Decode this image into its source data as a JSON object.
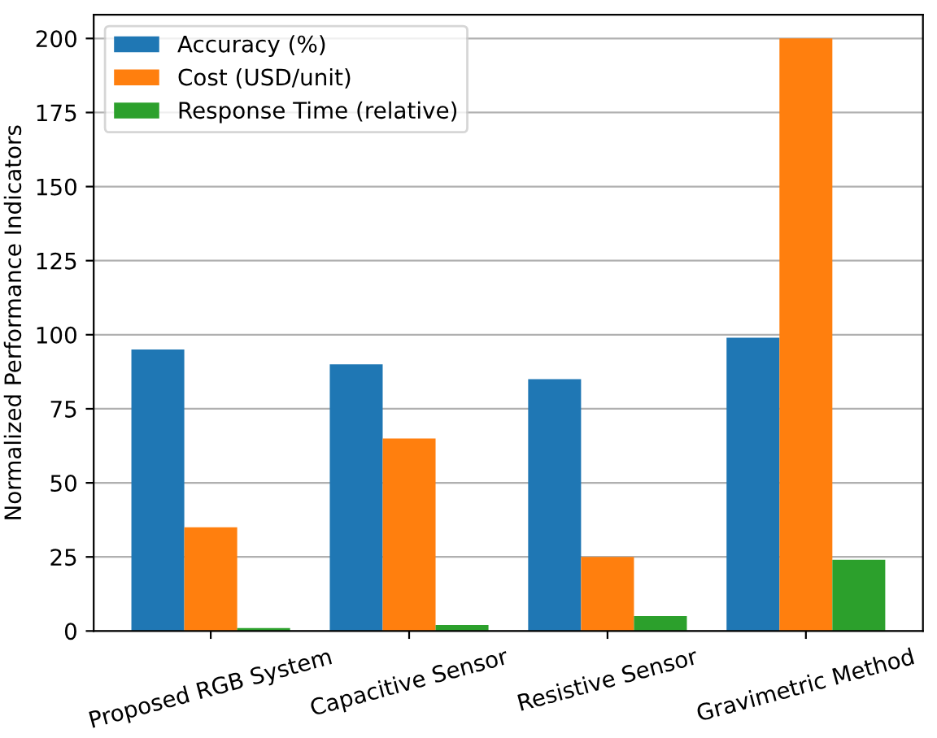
{
  "chart_data": {
    "type": "bar",
    "ylabel": "Normalized Performance Indicators",
    "categories": [
      "Proposed RGB System",
      "Capacitive Sensor",
      "Resistive Sensor",
      "Gravimetric Method"
    ],
    "series": [
      {
        "name": "Accuracy (%)",
        "color": "#1f77b4",
        "values": [
          95,
          90,
          85,
          99
        ]
      },
      {
        "name": "Cost (USD/unit)",
        "color": "#ff7f0e",
        "values": [
          35,
          65,
          25,
          200
        ]
      },
      {
        "name": "Response Time (relative)",
        "color": "#2ca02c",
        "values": [
          1,
          2,
          5,
          24
        ]
      }
    ],
    "ylim": [
      0,
      208
    ],
    "yticks": [
      0,
      25,
      50,
      75,
      100,
      125,
      150,
      175,
      200
    ],
    "grid": "y",
    "legend": "top left"
  }
}
